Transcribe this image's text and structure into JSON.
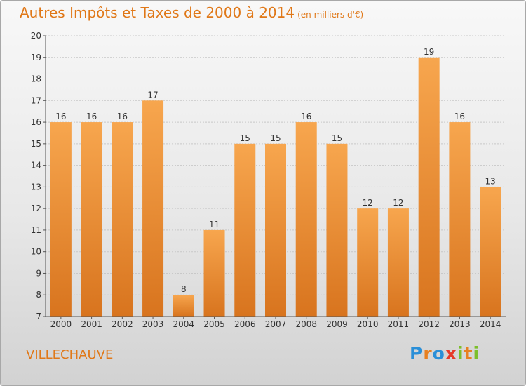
{
  "title": "Autres Impôts et Taxes de 2000 à 2014",
  "title_unit": "(en milliers d'€)",
  "city": "VILLECHAUVE",
  "logo": {
    "text": "Proxiti",
    "letters": [
      {
        "ch": "P",
        "color": "#2a8fd8"
      },
      {
        "ch": "r",
        "color": "#e88020"
      },
      {
        "ch": "o",
        "color": "#2a8fd8"
      },
      {
        "ch": "x",
        "color": "#e63a2a"
      },
      {
        "ch": "i",
        "color": "#7cbf2a"
      },
      {
        "ch": "t",
        "color": "#e88020"
      },
      {
        "ch": "i",
        "color": "#7cbf2a"
      }
    ]
  },
  "colors": {
    "bar_light": "#f7a64e",
    "bar_dark": "#d8741e",
    "accent": "#e07818"
  },
  "chart_data": {
    "type": "bar",
    "categories": [
      "2000",
      "2001",
      "2002",
      "2003",
      "2004",
      "2005",
      "2006",
      "2007",
      "2008",
      "2009",
      "2010",
      "2011",
      "2012",
      "2013",
      "2014"
    ],
    "values": [
      16,
      16,
      16,
      17,
      8,
      11,
      15,
      15,
      16,
      15,
      12,
      12,
      19,
      16,
      13
    ],
    "ylim": [
      7,
      20
    ],
    "yticks": [
      7,
      8,
      9,
      10,
      11,
      12,
      13,
      14,
      15,
      16,
      17,
      18,
      19,
      20
    ],
    "grid": true
  }
}
